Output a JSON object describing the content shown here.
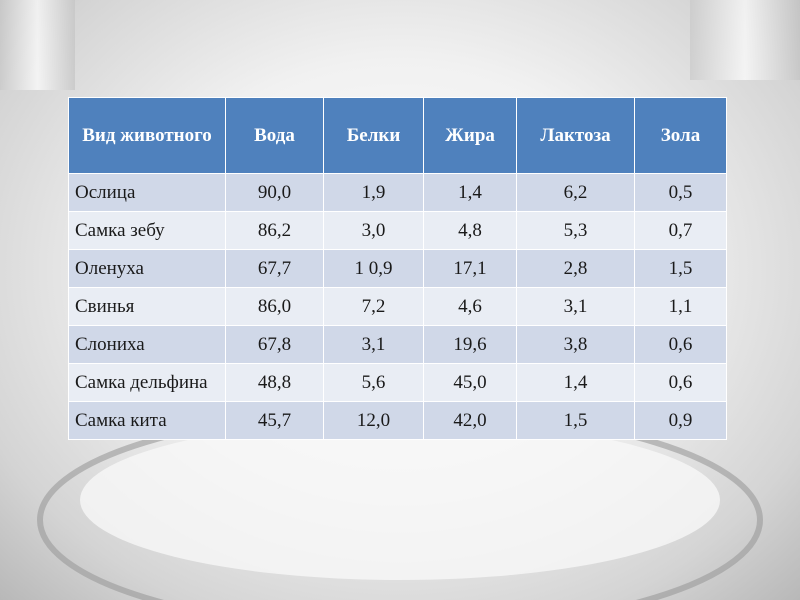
{
  "table": {
    "header": [
      "Вид животного",
      "Вода",
      "Белки",
      "Жира",
      "Лактоза",
      "Зола"
    ],
    "rows": [
      [
        "Ослица",
        "90,0",
        "1,9",
        "1,4",
        "6,2",
        "0,5"
      ],
      [
        "Самка зебу",
        "86,2",
        "3,0",
        "4,8",
        "5,3",
        "0,7"
      ],
      [
        "Оленуха",
        "67,7",
        "1 0,9",
        "17,1",
        "2,8",
        "1,5"
      ],
      [
        "Свинья",
        "86,0",
        "7,2",
        "4,6",
        "3,1",
        "1,1"
      ],
      [
        "Слониха",
        "67,8",
        "3,1",
        "19,6",
        "3,8",
        "0,6"
      ],
      [
        "Самка дельфина",
        "48,8",
        "5,6",
        "45,0",
        "1,4",
        "0,6"
      ],
      [
        "Самка кита",
        "45,7",
        "12,0",
        "42,0",
        "1,5",
        "0,9"
      ]
    ]
  }
}
